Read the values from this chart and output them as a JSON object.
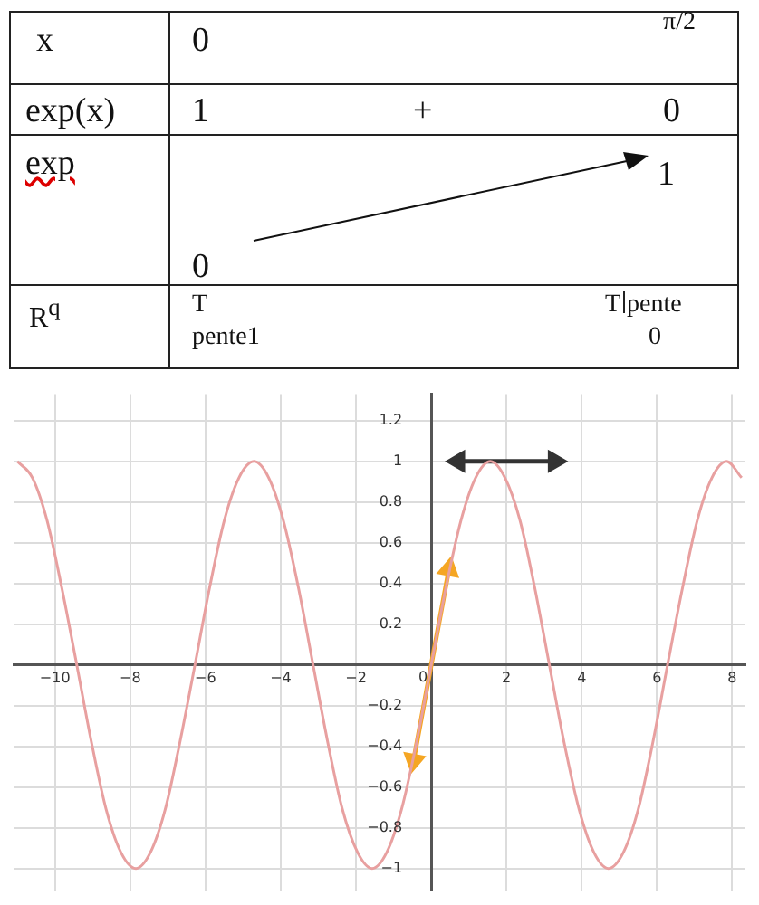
{
  "chart_data": {
    "type": "line",
    "annotations": [
      "x",
      "0",
      "π/2",
      "exp(x)",
      "1",
      "+",
      "0",
      "exp",
      "0",
      "1",
      "R$^{q}$",
      "T",
      "pente1",
      "T",
      "pente",
      "0"
    ],
    "series": [
      {
        "color": "#e8a0a0",
        "x": [
          -11.0,
          -10.6,
          -10.21,
          -9.82,
          -9.42,
          -9.03,
          -8.64,
          -8.25,
          -7.85,
          -7.46,
          -7.07,
          -6.68,
          -6.28,
          -5.89,
          -5.5,
          -5.11,
          -4.71,
          -4.32,
          -3.93,
          -3.53,
          -3.14,
          -2.75,
          -2.36,
          -1.96,
          -1.57,
          -1.18,
          -0.79,
          -0.39,
          0,
          0.39,
          0.79,
          1.18,
          1.57,
          1.96,
          2.36,
          2.75,
          3.14,
          3.53,
          3.93,
          4.32,
          4.71,
          5.11,
          5.5,
          5.89,
          6.28,
          6.68,
          7.07,
          7.46,
          7.85,
          8.25
        ],
        "values": [
          1,
          0.92,
          0.71,
          0.38,
          0,
          -0.38,
          -0.71,
          -0.92,
          -1,
          -0.92,
          -0.71,
          -0.38,
          0,
          0.38,
          0.71,
          0.92,
          1,
          0.92,
          0.71,
          0.38,
          0,
          -0.38,
          -0.71,
          -0.92,
          -1,
          -0.92,
          -0.71,
          -0.38,
          0,
          0.38,
          0.71,
          0.92,
          1,
          0.92,
          0.71,
          0.38,
          0,
          -0.38,
          -0.71,
          -0.92,
          -1,
          -0.92,
          -0.71,
          -0.38,
          0,
          0.38,
          0.71,
          0.92,
          1,
          0.92
        ]
      },
      {
        "color": "#f5a623",
        "x": [
          -0.47,
          0.47
        ],
        "values": [
          -0.47,
          0.47
        ],
        "marker": "triangle"
      },
      {
        "color": "#333333",
        "x": [
          0.72,
          3.28
        ],
        "values": [
          1,
          1
        ],
        "marker": "triangle"
      }
    ],
    "xlim": [
      -11.1,
      8.35
    ],
    "ylim": [
      -1.11,
      1.33
    ],
    "xticks": [
      {
        "value": -10,
        "label": "−10"
      },
      {
        "value": -8,
        "label": "−8"
      },
      {
        "value": -6,
        "label": "−6"
      },
      {
        "value": -4,
        "label": "−4"
      },
      {
        "value": -2,
        "label": "−2"
      },
      0,
      2,
      4,
      6,
      8
    ],
    "yticks": [
      {
        "value": -1,
        "label": "−1"
      },
      {
        "value": -0.8,
        "label": "−0.8"
      },
      {
        "value": -0.6,
        "label": "−0.6"
      },
      {
        "value": -0.4,
        "label": "−0.4"
      },
      {
        "value": -0.2,
        "label": "−0.2"
      },
      0.2,
      0.4,
      0.6,
      0.8,
      1,
      1.2
    ],
    "grid": true,
    "legend": false,
    "marker": "none",
    "line_style": "solid"
  }
}
